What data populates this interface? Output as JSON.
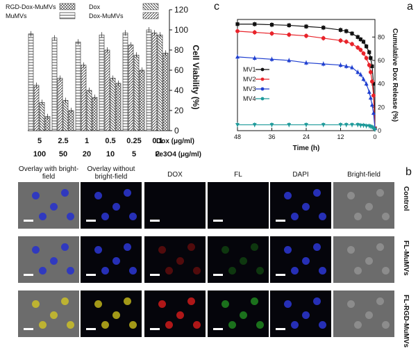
{
  "panel_labels": {
    "a": "a",
    "b": "b",
    "c": "c"
  },
  "chart_data": [
    {
      "type": "line",
      "panel": "a",
      "xlabel": "Time (h)",
      "ylabel": "Cumulative Dox Release (%)",
      "x_ticks": [
        0,
        12,
        24,
        36,
        48
      ],
      "y_ticks": [
        0,
        20,
        40,
        60,
        80
      ],
      "xlim": [
        0,
        48
      ],
      "ylim": [
        0,
        95
      ],
      "x_reversed": true,
      "legend": [
        "MV1",
        "MV2",
        "MV3",
        "MV4"
      ],
      "series": [
        {
          "name": "MV1",
          "color": "#111111",
          "marker": "square",
          "x": [
            0,
            0.5,
            1,
            1.5,
            2,
            3,
            4,
            5,
            6,
            8,
            10,
            12,
            18,
            24,
            30,
            36,
            42,
            48
          ],
          "y": [
            2,
            40,
            55,
            62,
            67,
            72,
            76,
            78,
            80,
            83,
            85,
            86,
            88,
            89,
            90,
            90.5,
            91,
            91
          ]
        },
        {
          "name": "MV2",
          "color": "#e8232a",
          "marker": "circle",
          "x": [
            0,
            0.5,
            1,
            1.5,
            2,
            3,
            4,
            5,
            6,
            8,
            10,
            12,
            18,
            24,
            30,
            36,
            42,
            48
          ],
          "y": [
            2,
            30,
            42,
            50,
            56,
            62,
            66,
            69,
            71,
            74,
            76,
            77,
            79,
            81,
            82,
            83,
            84,
            85
          ]
        },
        {
          "name": "MV3",
          "color": "#1f3fd0",
          "marker": "triangle-up",
          "x": [
            0,
            0.5,
            1,
            1.5,
            2,
            3,
            4,
            5,
            6,
            8,
            10,
            12,
            18,
            24,
            30,
            36,
            42,
            48
          ],
          "y": [
            2,
            15,
            22,
            28,
            33,
            40,
            44,
            48,
            50,
            54,
            55,
            56,
            57,
            58,
            60,
            61,
            62,
            63
          ]
        },
        {
          "name": "MV4",
          "color": "#1e9a9a",
          "marker": "triangle-down",
          "x": [
            0,
            0.5,
            1,
            1.5,
            2,
            3,
            4,
            5,
            6,
            8,
            10,
            12,
            18,
            24,
            30,
            36,
            42,
            48
          ],
          "y": [
            1,
            2,
            3,
            3.5,
            4,
            4,
            4.5,
            4.5,
            5,
            5,
            5,
            5,
            5,
            5,
            5,
            5,
            5,
            5
          ]
        }
      ]
    },
    {
      "type": "bar",
      "panel": "c",
      "ylabel": "Cell Viability (%)",
      "y_ticks": [
        0,
        20,
        40,
        60,
        80,
        100,
        120
      ],
      "ylim": [
        0,
        120
      ],
      "row_labels": {
        "dox": "Dox (μg/ml)",
        "fe": "Fe3O4 (μg/ml)"
      },
      "categories": [
        "0.1",
        "0.25",
        "0.5",
        "1",
        "2.5",
        "5"
      ],
      "categories_fe": [
        "2",
        "5",
        "10",
        "20",
        "50",
        "100"
      ],
      "series": [
        {
          "name": "MuMVs",
          "pattern": "hlines",
          "values": [
            100,
            97,
            95,
            88,
            92,
            96
          ]
        },
        {
          "name": "Dox-MuMVs",
          "pattern": "slash",
          "values": [
            97,
            85,
            80,
            65,
            52,
            45
          ]
        },
        {
          "name": "Dox",
          "pattern": "backslash",
          "values": [
            95,
            75,
            52,
            40,
            30,
            28
          ]
        },
        {
          "name": "RGD-Dox-MuMVs",
          "pattern": "cross",
          "values": [
            77,
            60,
            47,
            33,
            20,
            14
          ]
        }
      ],
      "legend": [
        "RGD-Dox-MuMVs",
        "Dox",
        "MuMVs",
        "Dox-MuMVs"
      ]
    }
  ],
  "microscopy": {
    "columns": [
      "Bright-field",
      "DAPI",
      "FL",
      "DOX",
      "Overlay without bright-field",
      "Overlay with bright-field"
    ],
    "rows": [
      "Control",
      "FL-MuMVs",
      "FL-RGD-MuMVs"
    ]
  }
}
